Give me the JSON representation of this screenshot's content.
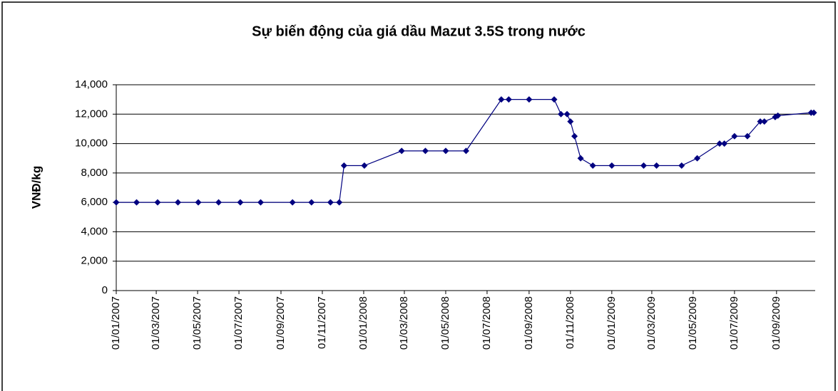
{
  "chart_data": {
    "type": "line",
    "title": "Sự biến động của giá dầu Mazut 3.5S trong nước",
    "y_label": "VNĐ/kg",
    "x": [
      "2007-01-01",
      "2007-01-31",
      "2007-03-03",
      "2007-04-02",
      "2007-05-02",
      "2007-06-01",
      "2007-07-03",
      "2007-08-02",
      "2007-09-18",
      "2007-10-16",
      "2007-11-13",
      "2007-11-26",
      "2007-12-03",
      "2008-01-02",
      "2008-02-26",
      "2008-04-01",
      "2008-05-01",
      "2008-05-31",
      "2008-07-22",
      "2008-08-02",
      "2008-09-01",
      "2008-10-08",
      "2008-10-18",
      "2008-10-27",
      "2008-11-01",
      "2008-11-07",
      "2008-11-16",
      "2008-12-04",
      "2009-01-01",
      "2009-02-17",
      "2009-03-08",
      "2009-04-14",
      "2009-05-07",
      "2009-06-09",
      "2009-06-16",
      "2009-07-01",
      "2009-07-20",
      "2009-08-08",
      "2009-08-14",
      "2009-08-30",
      "2009-09-03",
      "2009-10-22",
      "2009-10-26"
    ],
    "series": [
      {
        "name": "VNĐ/kg",
        "color": "#000080",
        "values": [
          6000,
          6000,
          6000,
          6000,
          6000,
          6000,
          6000,
          6000,
          6000,
          6000,
          6000,
          6000,
          8500,
          8500,
          9500,
          9500,
          9500,
          9500,
          13000,
          13000,
          13000,
          13000,
          12000,
          12000,
          11500,
          10500,
          9000,
          8500,
          8500,
          8500,
          8500,
          8500,
          9000,
          10000,
          10000,
          10500,
          10500,
          11500,
          11500,
          11800,
          11900,
          12100,
          12100
        ]
      }
    ],
    "xlim": [
      "2007-01-01",
      "2009-10-28"
    ],
    "xticks": [
      {
        "value": "2007-01-01",
        "label": "01/01/2007"
      },
      {
        "value": "2007-03-01",
        "label": "01/03/2007"
      },
      {
        "value": "2007-05-01",
        "label": "01/05/2007"
      },
      {
        "value": "2007-07-01",
        "label": "01/07/2007"
      },
      {
        "value": "2007-09-01",
        "label": "01/09/2007"
      },
      {
        "value": "2007-11-01",
        "label": "01/11/2007"
      },
      {
        "value": "2008-01-01",
        "label": "01/01/2008"
      },
      {
        "value": "2008-03-01",
        "label": "01/03/2008"
      },
      {
        "value": "2008-05-01",
        "label": "01/05/2008"
      },
      {
        "value": "2008-07-01",
        "label": "01/07/2008"
      },
      {
        "value": "2008-09-01",
        "label": "01/09/2008"
      },
      {
        "value": "2008-11-01",
        "label": "01/11/2008"
      },
      {
        "value": "2009-01-01",
        "label": "01/01/2009"
      },
      {
        "value": "2009-03-01",
        "label": "01/03/2009"
      },
      {
        "value": "2009-05-01",
        "label": "01/05/2009"
      },
      {
        "value": "2009-07-01",
        "label": "01/07/2009"
      },
      {
        "value": "2009-09-01",
        "label": "01/09/2009"
      }
    ],
    "ylim": [
      0,
      14000
    ],
    "yticks": [
      0,
      {
        "value": 2000,
        "label": "2,000"
      },
      {
        "value": 4000,
        "label": "4,000"
      },
      {
        "value": 6000,
        "label": "6,000"
      },
      {
        "value": 8000,
        "label": "8,000"
      },
      {
        "value": 10000,
        "label": "10,000"
      },
      {
        "value": 12000,
        "label": "12,000"
      },
      {
        "value": 14000,
        "label": "14,000"
      }
    ],
    "grid": true
  }
}
